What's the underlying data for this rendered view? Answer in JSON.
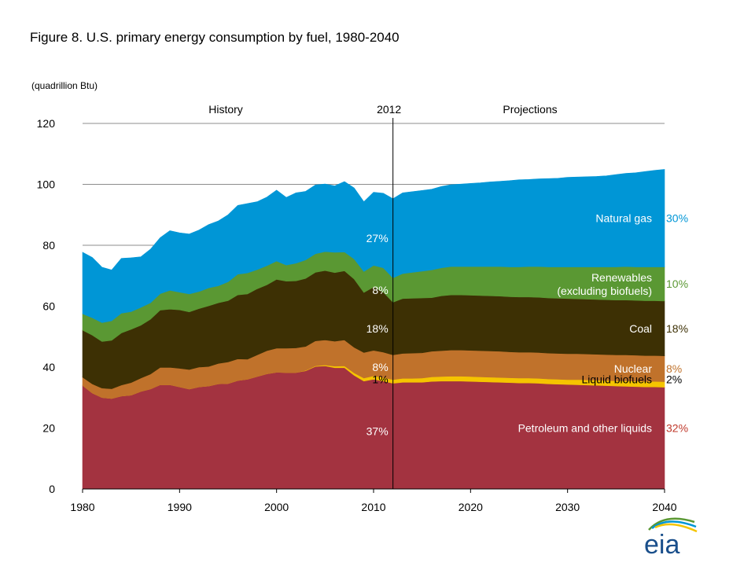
{
  "title": "Figure 8. U.S. primary energy consumption by fuel, 1980-2040",
  "units": "(quadrillion  Btu)",
  "logo_text": "eia",
  "chart_data": {
    "type": "area",
    "title": "Figure 8. U.S. primary energy consumption by fuel, 1980-2040",
    "ylabel": "(quadrillion  Btu)",
    "xlim": [
      1980,
      2040
    ],
    "ylim": [
      0,
      120
    ],
    "x_ticks": [
      "1980",
      "1990",
      "2000",
      "2010",
      "2020",
      "2030",
      "2040"
    ],
    "y_ticks": [
      "0",
      "20",
      "40",
      "60",
      "80",
      "100",
      "120"
    ],
    "grid": "horizontal",
    "divider": {
      "x": 2012,
      "label": "2012"
    },
    "region_labels": {
      "history": "History",
      "projections": "Projections"
    },
    "x": [
      1980,
      1981,
      1982,
      1983,
      1984,
      1985,
      1986,
      1987,
      1988,
      1989,
      1990,
      1991,
      1992,
      1993,
      1994,
      1995,
      1996,
      1997,
      1998,
      1999,
      2000,
      2001,
      2002,
      2003,
      2004,
      2005,
      2006,
      2007,
      2008,
      2009,
      2010,
      2011,
      2012,
      2013,
      2014,
      2015,
      2016,
      2017,
      2018,
      2019,
      2020,
      2021,
      2022,
      2023,
      2024,
      2025,
      2026,
      2027,
      2028,
      2029,
      2030,
      2031,
      2032,
      2033,
      2034,
      2035,
      2036,
      2037,
      2038,
      2039,
      2040
    ],
    "series": [
      {
        "name": "Petroleum and other liquids",
        "color": "#a33340",
        "share_2012": "37%",
        "share_2040": "32%",
        "values": [
          34.0,
          31.5,
          30.0,
          29.7,
          30.5,
          30.8,
          32.0,
          32.8,
          34.2,
          34.2,
          33.5,
          32.8,
          33.5,
          33.8,
          34.5,
          34.6,
          35.6,
          36.0,
          36.9,
          37.8,
          38.3,
          38.2,
          38.2,
          38.8,
          40.2,
          40.4,
          39.8,
          39.8,
          37.3,
          35.4,
          36.0,
          35.4,
          34.7,
          35.0,
          35.0,
          35.0,
          35.3,
          35.4,
          35.4,
          35.4,
          35.3,
          35.2,
          35.1,
          35.0,
          34.9,
          34.8,
          34.8,
          34.7,
          34.5,
          34.4,
          34.3,
          34.2,
          34.1,
          34.0,
          33.9,
          33.8,
          33.7,
          33.6,
          33.5,
          33.5,
          33.4
        ]
      },
      {
        "name": "Liquid biofuels",
        "color": "#f5c400",
        "share_2012": "1%",
        "share_2040": "2%",
        "values": [
          0.0,
          0.0,
          0.0,
          0.0,
          0.0,
          0.0,
          0.0,
          0.0,
          0.0,
          0.0,
          0.0,
          0.0,
          0.0,
          0.0,
          0.0,
          0.0,
          0.0,
          0.0,
          0.0,
          0.0,
          0.0,
          0.0,
          0.0,
          0.1,
          0.2,
          0.3,
          0.5,
          0.6,
          0.8,
          1.0,
          1.1,
          1.2,
          1.2,
          1.3,
          1.3,
          1.4,
          1.5,
          1.5,
          1.6,
          1.6,
          1.6,
          1.6,
          1.6,
          1.6,
          1.6,
          1.6,
          1.6,
          1.6,
          1.6,
          1.6,
          1.6,
          1.7,
          1.7,
          1.7,
          1.7,
          1.7,
          1.8,
          1.8,
          1.8,
          1.8,
          1.8
        ]
      },
      {
        "name": "Nuclear",
        "color": "#c0722b",
        "share_2012": "8%",
        "share_2040": "8%",
        "values": [
          2.7,
          3.0,
          3.1,
          3.2,
          3.6,
          4.1,
          4.4,
          4.9,
          5.7,
          5.7,
          6.1,
          6.4,
          6.5,
          6.4,
          6.7,
          7.1,
          7.1,
          6.6,
          7.1,
          7.6,
          7.9,
          8.0,
          8.1,
          7.9,
          8.2,
          8.2,
          8.2,
          8.5,
          8.4,
          8.4,
          8.4,
          8.3,
          8.1,
          8.2,
          8.3,
          8.3,
          8.4,
          8.5,
          8.6,
          8.6,
          8.6,
          8.6,
          8.6,
          8.6,
          8.5,
          8.5,
          8.5,
          8.5,
          8.5,
          8.5,
          8.5,
          8.5,
          8.5,
          8.5,
          8.5,
          8.5,
          8.5,
          8.5,
          8.5,
          8.5,
          8.5
        ]
      },
      {
        "name": "Coal",
        "color": "#3d3004",
        "share_2012": "18%",
        "share_2040": "18%",
        "values": [
          15.4,
          16.0,
          15.3,
          15.9,
          17.1,
          17.5,
          17.3,
          18.0,
          18.8,
          19.1,
          19.2,
          18.9,
          19.2,
          19.9,
          19.9,
          20.1,
          21.0,
          21.4,
          21.7,
          21.6,
          22.6,
          22.0,
          22.0,
          22.3,
          22.5,
          22.8,
          22.5,
          22.7,
          22.4,
          19.7,
          20.8,
          19.7,
          17.3,
          18.0,
          18.0,
          18.0,
          17.6,
          18.0,
          18.1,
          18.1,
          18.1,
          18.1,
          18.1,
          18.1,
          18.1,
          18.1,
          18.1,
          18.1,
          18.1,
          18.1,
          18.1,
          18.0,
          18.0,
          18.0,
          18.0,
          18.0,
          18.0,
          18.0,
          18.0,
          18.0,
          18.0
        ]
      },
      {
        "name": "Renewables\n(excluding biofuels)",
        "color": "#5a9833",
        "share_2012": "8%",
        "share_2040": "10%",
        "values": [
          5.4,
          5.7,
          6.2,
          6.4,
          6.5,
          5.8,
          5.9,
          5.4,
          5.4,
          6.2,
          5.8,
          5.9,
          5.6,
          5.9,
          5.6,
          6.2,
          6.8,
          6.9,
          6.3,
          6.3,
          6.0,
          5.3,
          5.8,
          6.1,
          6.1,
          6.2,
          6.7,
          6.2,
          6.6,
          6.9,
          7.1,
          8.0,
          8.0,
          8.2,
          8.5,
          8.8,
          9.1,
          9.2,
          9.3,
          9.3,
          9.4,
          9.5,
          9.6,
          9.7,
          9.8,
          9.9,
          10.0,
          10.1,
          10.2,
          10.3,
          10.4,
          10.5,
          10.6,
          10.7,
          10.8,
          10.9,
          11.0,
          11.0,
          11.1,
          11.1,
          11.2
        ]
      },
      {
        "name": "Natural gas",
        "color": "#0096d6",
        "share_2012": "27%",
        "share_2040": "30%",
        "values": [
          20.2,
          19.8,
          18.2,
          16.7,
          18.0,
          17.7,
          16.6,
          17.6,
          18.4,
          19.6,
          19.5,
          19.7,
          20.2,
          20.8,
          21.3,
          22.0,
          22.6,
          22.8,
          22.3,
          22.5,
          23.3,
          22.2,
          23.1,
          22.5,
          22.6,
          22.2,
          21.8,
          23.1,
          23.3,
          22.9,
          24.0,
          24.5,
          26.0,
          26.5,
          26.5,
          26.5,
          26.5,
          26.7,
          26.9,
          27.1,
          27.3,
          27.5,
          27.8,
          28.0,
          28.3,
          28.6,
          28.6,
          28.8,
          29.0,
          29.1,
          29.4,
          29.5,
          29.6,
          29.7,
          29.9,
          30.3,
          30.6,
          30.9,
          31.3,
          31.7,
          32.0
        ]
      }
    ]
  }
}
